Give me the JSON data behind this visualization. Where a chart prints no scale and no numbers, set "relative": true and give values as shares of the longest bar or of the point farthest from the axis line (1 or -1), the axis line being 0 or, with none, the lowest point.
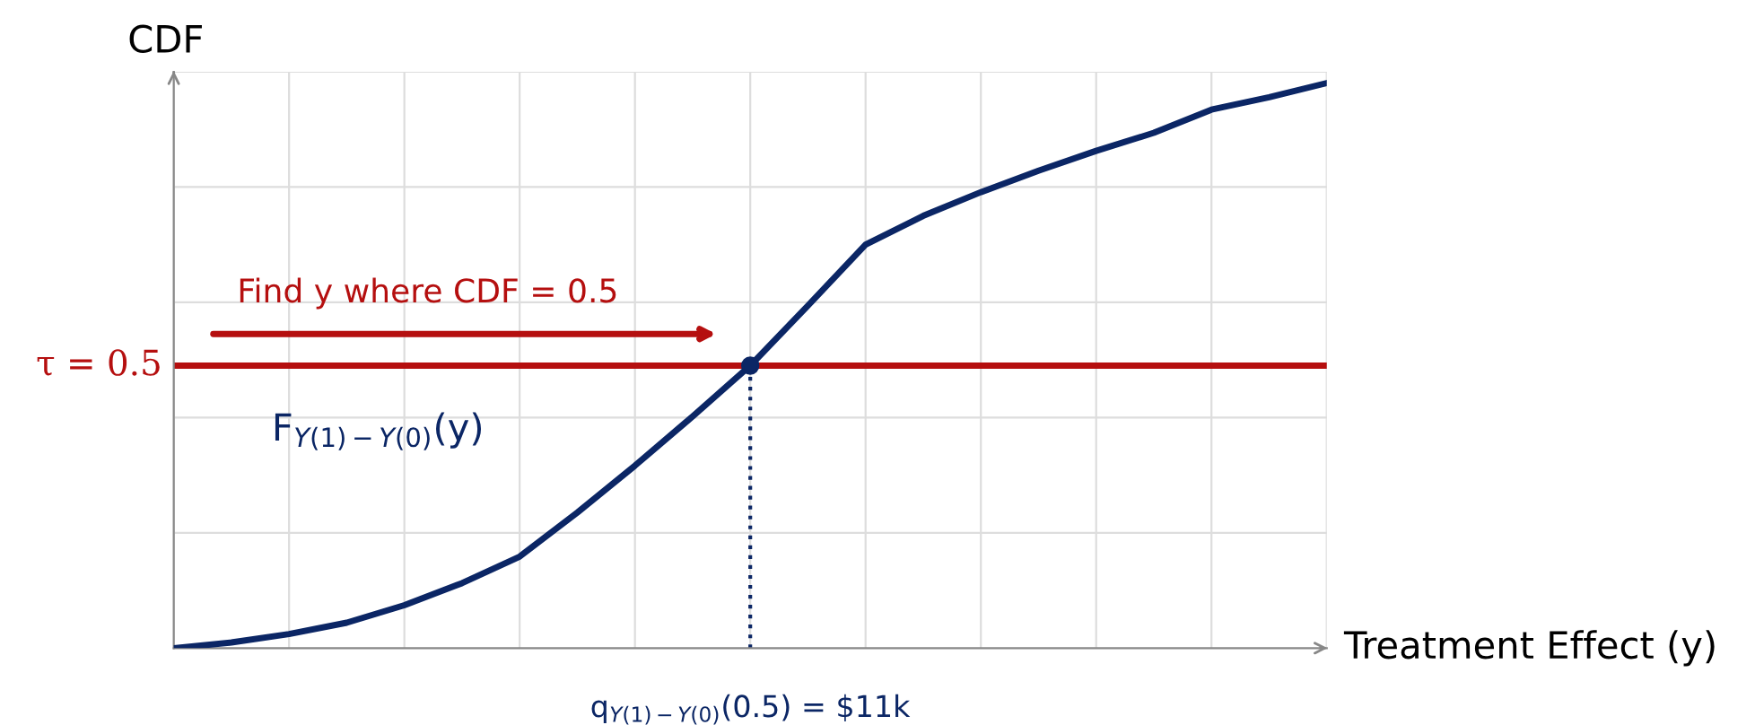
{
  "chart_data": {
    "type": "line",
    "relative": true,
    "xlabel": "Treatment Effect (y)",
    "ylabel": "CDF",
    "categories": [
      null,
      null,
      null,
      null,
      null,
      null,
      null,
      null,
      null,
      null,
      null,
      null,
      null,
      null,
      null,
      null,
      null,
      null,
      null,
      null,
      null
    ],
    "series": [
      {
        "name": "F$_{Y(1)−Y(0)}$(y)",
        "color": "#0b2665",
        "values": [
          0,
          0.01,
          0.025,
          0.045,
          0.076,
          0.115,
          0.162,
          0.24,
          0.323,
          0.41,
          0.5,
          0.606,
          0.714,
          0.765,
          0.807,
          0.845,
          0.88,
          0.912,
          0.953,
          0.975,
          1
        ]
      }
    ],
    "ref_lines": [
      {
        "axis": "y",
        "value": 0.5,
        "label": "τ = 0.5",
        "color": "#b50f0f",
        "line_style": "solid"
      }
    ],
    "annotations": [
      "Find y where CDF = 0.5",
      "q$_{Y(1)−Y(0)}$(0.5) = $11k"
    ],
    "grid": true,
    "legend": false,
    "marker": "none",
    "line_style": "solid"
  }
}
